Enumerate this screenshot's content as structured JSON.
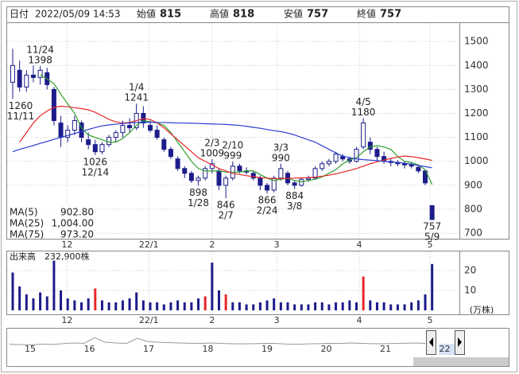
{
  "header": {
    "items": [
      {
        "label": "日付",
        "value": "2022/05/09 14:53",
        "color": "#222"
      },
      {
        "label": "始値",
        "value": 815,
        "color": "#222"
      },
      {
        "label": "高値",
        "value": 818,
        "color": "#e8262a"
      },
      {
        "label": "安値",
        "value": 757,
        "color": "#1a9a1a"
      },
      {
        "label": "終値",
        "value": 757,
        "color": "#222"
      }
    ]
  },
  "chart_data": [
    {
      "type": "candlestick",
      "open": [
        1330,
        1380,
        1310,
        1360,
        1350,
        1370,
        1300,
        1160,
        1100,
        1130,
        1160,
        1090,
        1070,
        1040,
        1070,
        1100,
        1120,
        1150,
        1140,
        1200,
        1150,
        1130,
        1090,
        1050,
        1010,
        970,
        950,
        920,
        930,
        970,
        960,
        900,
        930,
        980,
        960,
        950,
        930,
        900,
        880,
        930,
        950,
        910,
        900,
        925,
        930,
        970,
        990,
        1000,
        1020,
        1010,
        1000,
        1060,
        1080,
        1050,
        1020,
        1000,
        995,
        990,
        985,
        975,
        960,
        815
      ],
      "high": [
        1470,
        1420,
        1380,
        1400,
        1398,
        1390,
        1310,
        1190,
        1150,
        1190,
        1170,
        1120,
        1090,
        1080,
        1110,
        1130,
        1170,
        1180,
        1241,
        1230,
        1170,
        1150,
        1100,
        1060,
        1020,
        980,
        960,
        940,
        980,
        1009,
        970,
        940,
        999,
        990,
        975,
        960,
        940,
        910,
        940,
        990,
        960,
        920,
        930,
        940,
        980,
        1000,
        1010,
        1040,
        1030,
        1020,
        1060,
        1180,
        1100,
        1060,
        1040,
        1010,
        1005,
        1000,
        995,
        985,
        965,
        818
      ],
      "low": [
        1260,
        1290,
        1290,
        1330,
        1320,
        1300,
        1150,
        1060,
        1080,
        1110,
        1080,
        1050,
        1026,
        1030,
        1060,
        1080,
        1100,
        1120,
        1130,
        1140,
        1120,
        1090,
        1040,
        1010,
        960,
        930,
        910,
        898,
        920,
        950,
        880,
        846,
        920,
        950,
        945,
        920,
        880,
        866,
        870,
        920,
        900,
        884,
        895,
        915,
        925,
        960,
        980,
        990,
        1000,
        990,
        995,
        1050,
        1030,
        1000,
        990,
        980,
        980,
        970,
        970,
        950,
        900,
        757
      ],
      "close": [
        1400,
        1310,
        1360,
        1350,
        1380,
        1320,
        1170,
        1100,
        1130,
        1170,
        1100,
        1070,
        1040,
        1070,
        1100,
        1120,
        1150,
        1140,
        1200,
        1160,
        1130,
        1100,
        1050,
        1020,
        970,
        950,
        920,
        930,
        970,
        990,
        900,
        930,
        980,
        960,
        955,
        930,
        900,
        880,
        930,
        970,
        910,
        900,
        925,
        930,
        970,
        990,
        1000,
        1030,
        1010,
        1000,
        1050,
        1160,
        1050,
        1020,
        1000,
        995,
        990,
        985,
        980,
        960,
        910,
        757
      ],
      "up_color": "#ffffff",
      "down_color": "#1c1c8a",
      "edge_color": "#1c1c8a",
      "series": [
        {
          "name": "MA(5)",
          "color": "#2e9e2e",
          "legend_value": "902.80",
          "values": [
            null,
            null,
            null,
            null,
            1360,
            1344,
            1324,
            1280,
            1240,
            1200,
            1140,
            1110,
            1100,
            1090,
            1080,
            1080,
            1095,
            1120,
            1150,
            1170,
            1165,
            1160,
            1150,
            1120,
            1080,
            1040,
            1000,
            970,
            960,
            960,
            960,
            955,
            955,
            955,
            960,
            960,
            945,
            930,
            920,
            925,
            930,
            920,
            915,
            920,
            925,
            935,
            950,
            965,
            990,
            1005,
            1015,
            1040,
            1060,
            1065,
            1060,
            1050,
            1020,
            1000,
            995,
            985,
            965,
            902.8
          ]
        },
        {
          "name": "MA(25)",
          "color": "#e8262a",
          "legend_value": "1,004.00",
          "values": [
            null,
            1080,
            1120,
            1160,
            1190,
            1210,
            1225,
            1230,
            1228,
            1224,
            1220,
            1215,
            1205,
            1190,
            1175,
            1165,
            1160,
            1162,
            1170,
            1178,
            1175,
            1160,
            1140,
            1115,
            1090,
            1065,
            1040,
            1015,
            1000,
            985,
            970,
            960,
            950,
            945,
            940,
            936,
            932,
            930,
            928,
            928,
            929,
            930,
            931,
            932,
            934,
            938,
            942,
            948,
            955,
            962,
            970,
            980,
            990,
            998,
            1005,
            1012,
            1018,
            1022,
            1020,
            1015,
            1010,
            1004
          ]
        },
        {
          "name": "MA(75)",
          "color": "#2b3fd0",
          "legend_value": "973.20",
          "values": [
            1040,
            1050,
            1058,
            1066,
            1075,
            1083,
            1092,
            1100,
            1108,
            1116,
            1125,
            1133,
            1141,
            1148,
            1152,
            1155,
            1158,
            1160,
            1162,
            1163,
            1163,
            1162,
            1162,
            1161,
            1160,
            1160,
            1159,
            1158,
            1157,
            1156,
            1155,
            1154,
            1152,
            1150,
            1146,
            1142,
            1138,
            1133,
            1128,
            1124,
            1118,
            1110,
            1100,
            1090,
            1080,
            1065,
            1050,
            1035,
            1022,
            1015,
            1010,
            1007,
            1005,
            1003,
            1000,
            998,
            995,
            992,
            988,
            983,
            978,
            973.2
          ]
        }
      ],
      "annotations": [
        {
          "label": "11/24",
          "value": 1398,
          "kind": "high"
        },
        {
          "label": "11/11",
          "value": 1260,
          "kind": "low"
        },
        {
          "label": "12/14",
          "value": 1026,
          "kind": "low"
        },
        {
          "label": "1/4",
          "value": 1241,
          "kind": "high"
        },
        {
          "label": "1/28",
          "value": 898,
          "kind": "low"
        },
        {
          "label": "2/3",
          "value": 1009,
          "kind": "high"
        },
        {
          "label": "2/7",
          "value": 846,
          "kind": "low"
        },
        {
          "label": "2/10",
          "value": 999,
          "kind": "high"
        },
        {
          "label": "2/24",
          "value": 866,
          "kind": "low"
        },
        {
          "label": "3/3",
          "value": 990,
          "kind": "high"
        },
        {
          "label": "3/8",
          "value": 884,
          "kind": "low"
        },
        {
          "label": "4/5",
          "value": 1180,
          "kind": "high"
        },
        {
          "label": "5/9",
          "value": 757,
          "kind": "low"
        }
      ],
      "ylim": [
        677,
        1577
      ],
      "yticks": [
        700,
        800,
        900,
        1000,
        1100,
        1200,
        1300,
        1400,
        1500
      ],
      "xticks": [
        {
          "value": 7.9,
          "label": "12"
        },
        {
          "value": 19.8,
          "label": "22/1"
        },
        {
          "value": 29,
          "label": "2"
        },
        {
          "value": 38.4,
          "label": "3"
        },
        {
          "value": 50.4,
          "label": "4"
        },
        {
          "value": 60.7,
          "label": "5"
        }
      ],
      "grid": true
    },
    {
      "type": "bar",
      "title": "出来高",
      "latest_label": "232,900株",
      "unit_label": "(万株)",
      "values": [
        19,
        12,
        8,
        6,
        9,
        7,
        25,
        10,
        6,
        5,
        4,
        6,
        11,
        5,
        4,
        4,
        5,
        6,
        9,
        5,
        4,
        4,
        3,
        4,
        5,
        4,
        4,
        6,
        7,
        24,
        10,
        8,
        4,
        4,
        3,
        3,
        4,
        5,
        6,
        4,
        4,
        3,
        3,
        3,
        4,
        4,
        3,
        4,
        4,
        5,
        4,
        17,
        5,
        4,
        4,
        3,
        3,
        3,
        4,
        5,
        8,
        23.29
      ],
      "colors": [
        "#1c1c8a",
        "#1c1c8a",
        "#1c1c8a",
        "#1c1c8a",
        "#1c1c8a",
        "#1c1c8a",
        "#1c1c8a",
        "#1c1c8a",
        "#1c1c8a",
        "#1c1c8a",
        "#1c1c8a",
        "#1c1c8a",
        "#e8262a",
        "#1c1c8a",
        "#1c1c8a",
        "#1c1c8a",
        "#1c1c8a",
        "#1c1c8a",
        "#1c1c8a",
        "#1c1c8a",
        "#1c1c8a",
        "#1c1c8a",
        "#1c1c8a",
        "#1c1c8a",
        "#1c1c8a",
        "#1c1c8a",
        "#1c1c8a",
        "#1c1c8a",
        "#e8262a",
        "#1c1c8a",
        "#1c1c8a",
        "#e8262a",
        "#1c1c8a",
        "#1c1c8a",
        "#1c1c8a",
        "#1c1c8a",
        "#1c1c8a",
        "#1c1c8a",
        "#1c1c8a",
        "#1c1c8a",
        "#1c1c8a",
        "#1c1c8a",
        "#1c1c8a",
        "#1c1c8a",
        "#1c1c8a",
        "#1c1c8a",
        "#1c1c8a",
        "#1c1c8a",
        "#1c1c8a",
        "#1c1c8a",
        "#1c1c8a",
        "#e8262a",
        "#1c1c8a",
        "#1c1c8a",
        "#1c1c8a",
        "#1c1c8a",
        "#1c1c8a",
        "#1c1c8a",
        "#1c1c8a",
        "#1c1c8a",
        "#1c1c8a",
        "#1c1c8a"
      ],
      "ylim": [
        0,
        30
      ],
      "yticks": [
        10,
        20
      ],
      "xticks": [
        {
          "value": 7.9,
          "label": "12"
        },
        {
          "value": 19.8,
          "label": "22/1"
        },
        {
          "value": 29,
          "label": "2"
        },
        {
          "value": 38.4,
          "label": "3"
        },
        {
          "value": 50.4,
          "label": "4"
        },
        {
          "value": 60.7,
          "label": "5"
        }
      ],
      "grid": true
    },
    {
      "type": "line",
      "color": "#999999",
      "values": [
        800,
        780,
        760,
        820,
        790,
        850,
        900,
        880,
        1300,
        950,
        900,
        870,
        1250,
        1000,
        950,
        920,
        900,
        880,
        870,
        900,
        860,
        840,
        830,
        850,
        870,
        860,
        820,
        800,
        830,
        850,
        880,
        860,
        900,
        870,
        850,
        840,
        860,
        880,
        900,
        870
      ],
      "ylim": [
        0,
        1800
      ],
      "xticks": [
        15,
        16,
        17,
        18,
        19,
        20,
        21,
        22
      ]
    }
  ]
}
